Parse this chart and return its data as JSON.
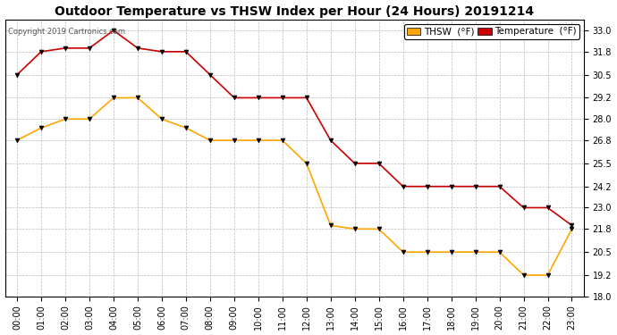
{
  "title": "Outdoor Temperature vs THSW Index per Hour (24 Hours) 20191214",
  "copyright": "Copyright 2019 Cartronics.com",
  "hours": [
    "00:00",
    "01:00",
    "02:00",
    "03:00",
    "04:00",
    "05:00",
    "06:00",
    "07:00",
    "08:00",
    "09:00",
    "10:00",
    "11:00",
    "12:00",
    "13:00",
    "14:00",
    "15:00",
    "16:00",
    "17:00",
    "18:00",
    "19:00",
    "20:00",
    "21:00",
    "22:00",
    "23:00"
  ],
  "thsw": [
    26.8,
    27.5,
    28.0,
    28.0,
    29.2,
    29.2,
    28.0,
    27.5,
    26.8,
    26.8,
    26.8,
    26.8,
    25.5,
    22.0,
    21.8,
    21.8,
    20.5,
    20.5,
    20.5,
    20.5,
    20.5,
    19.2,
    19.2,
    21.8
  ],
  "temperature": [
    30.5,
    31.8,
    32.0,
    32.0,
    33.0,
    32.0,
    31.8,
    31.8,
    30.5,
    29.2,
    29.2,
    29.2,
    29.2,
    26.8,
    25.5,
    25.5,
    24.2,
    24.2,
    24.2,
    24.2,
    24.2,
    23.0,
    23.0,
    22.0
  ],
  "thsw_color": "#FFA500",
  "temp_color": "#CC0000",
  "background_color": "#ffffff",
  "grid_color": "#bbbbbb",
  "ylim_min": 18.0,
  "ylim_max": 33.6,
  "yticks": [
    18.0,
    19.2,
    20.5,
    21.8,
    23.0,
    24.2,
    25.5,
    26.8,
    28.0,
    29.2,
    30.5,
    31.8,
    33.0
  ],
  "legend_thsw_label": "THSW  (°F)",
  "legend_temp_label": "Temperature  (°F)",
  "title_fontsize": 10,
  "tick_fontsize": 7,
  "legend_fontsize": 7.5
}
